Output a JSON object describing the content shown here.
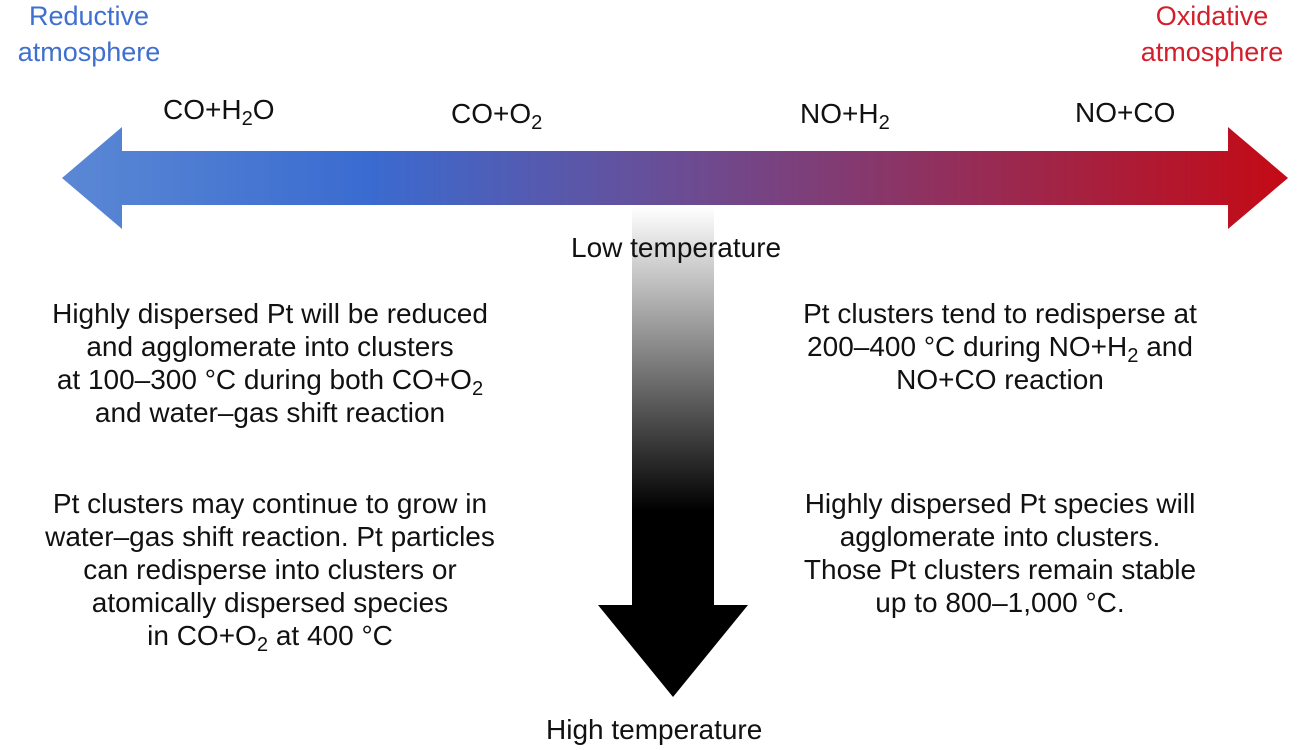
{
  "colors": {
    "reductive": "#3f6fcf",
    "oxidative": "#d21f2b",
    "arrow_left": "#5b88d4",
    "arrow_blue": "#3a6bd0",
    "arrow_mid": "#6a4d95",
    "arrow_red": "#c40a15",
    "temperature_top": "#ffffff",
    "temperature_bottom": "#000000"
  },
  "atmosphere": {
    "reductive_line1": "Reductive",
    "reductive_line2": "atmosphere",
    "oxidative_line1": "Oxidative",
    "oxidative_line2": "atmosphere"
  },
  "reactions": {
    "co_h2o": {
      "a": "CO+H",
      "sub": "2",
      "b": "O"
    },
    "co_o2": {
      "a": "CO+O",
      "sub": "2"
    },
    "no_h2": {
      "a": "NO+H",
      "sub": "2"
    },
    "no_co": {
      "a": "NO+CO"
    }
  },
  "temperature": {
    "low": "Low temperature",
    "high": "High temperature"
  },
  "paragraphs": {
    "left_low": {
      "line1": "Highly dispersed Pt will be reduced",
      "line2": "and agglomerate into clusters",
      "line3": "at 100–300 °C during both CO+O",
      "line3_sub": "2",
      "line4": "and water–gas shift reaction"
    },
    "right_low": {
      "line1": "Pt clusters tend to redisperse at",
      "line2": "200–400 °C during NO+H",
      "line2_sub": "2",
      "line2_end": " and",
      "line3": "NO+CO reaction"
    },
    "left_high": {
      "line1": "Pt clusters may continue to grow in",
      "line2": "water–gas shift reaction. Pt particles",
      "line3": "can redisperse into clusters or",
      "line4": "atomically dispersed species",
      "line5": "in CO+O",
      "line5_sub": "2",
      "line5_end": " at 400 °C"
    },
    "right_high": {
      "line1": "Highly dispersed Pt species will",
      "line2": "agglomerate into clusters.",
      "line3": "Those Pt clusters remain stable",
      "line4": "up to 800–1,000 °C."
    }
  }
}
